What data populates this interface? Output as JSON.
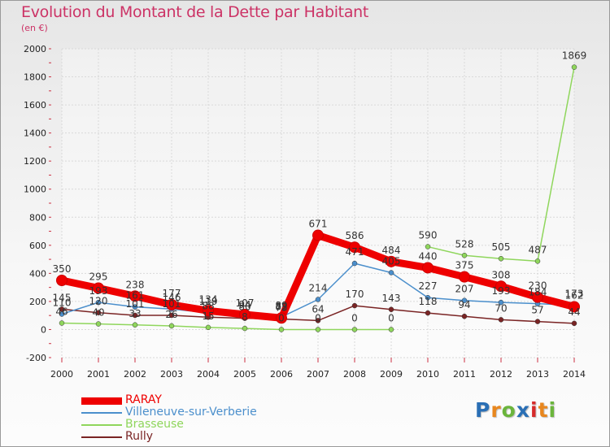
{
  "title": "Evolution du Montant de la Dette par Habitant",
  "subtitle": "(en €)",
  "logo": {
    "text": "Proxiti",
    "colors": [
      "#2a6fb5",
      "#e8871e",
      "#6bb53c",
      "#2a6fb5",
      "#d62b2b",
      "#e8871e",
      "#6bb53c"
    ]
  },
  "chart_data": {
    "type": "line",
    "x": [
      "2000",
      "2001",
      "2002",
      "2003",
      "2004",
      "2005",
      "2006",
      "2007",
      "2008",
      "2009",
      "2010",
      "2011",
      "2012",
      "2013",
      "2014"
    ],
    "ylim": [
      -200,
      2000
    ],
    "yticks": [
      -200,
      0,
      200,
      400,
      600,
      800,
      1000,
      1200,
      1400,
      1600,
      1800,
      2000
    ],
    "grid": true,
    "legend_position": "bottom-left",
    "series": [
      {
        "name": "RARAY",
        "color": "#ee0000",
        "values": [
          350,
          295,
          238,
          177,
          134,
          107,
          82,
          671,
          586,
          484,
          440,
          375,
          308,
          230,
          162
        ],
        "labels": [
          "350",
          "295",
          "238",
          "177",
          "134",
          "107",
          "82",
          "671",
          "586",
          "484",
          "440",
          "375",
          "308",
          "230",
          "162"
        ]
      },
      {
        "name": "Villeneuve-sur-Verberie",
        "color": "#4b8fcc",
        "values": [
          110,
          193,
          161,
          146,
          119,
          94,
          89,
          214,
          471,
          405,
          227,
          207,
          193,
          184,
          173
        ],
        "labels": [
          "110",
          "193",
          "161",
          "146",
          "119",
          "94",
          "89",
          "214",
          "471",
          "405",
          "227",
          "207",
          "193",
          "184",
          "173"
        ]
      },
      {
        "name": "Brasseuse",
        "color": "#8fd65c",
        "values": [
          46,
          40,
          33,
          26,
          15,
          8,
          0,
          0,
          0,
          0,
          590,
          528,
          505,
          487,
          1869
        ],
        "labels": [
          "46",
          "40",
          "33",
          "26",
          "15",
          "8",
          "0",
          "0",
          "0",
          "0",
          "590",
          "528",
          "505",
          "487",
          "1869"
        ]
      },
      {
        "name": "Rully",
        "color": "#7a2424",
        "values": [
          145,
          120,
          101,
          101,
          88,
          80,
          75,
          64,
          170,
          143,
          118,
          94,
          70,
          57,
          44
        ],
        "labels": [
          "145",
          "120",
          "101",
          "101",
          "88",
          "80",
          "75",
          "64",
          "170",
          "143",
          "118",
          "94",
          "70",
          "57",
          "44"
        ]
      }
    ]
  }
}
